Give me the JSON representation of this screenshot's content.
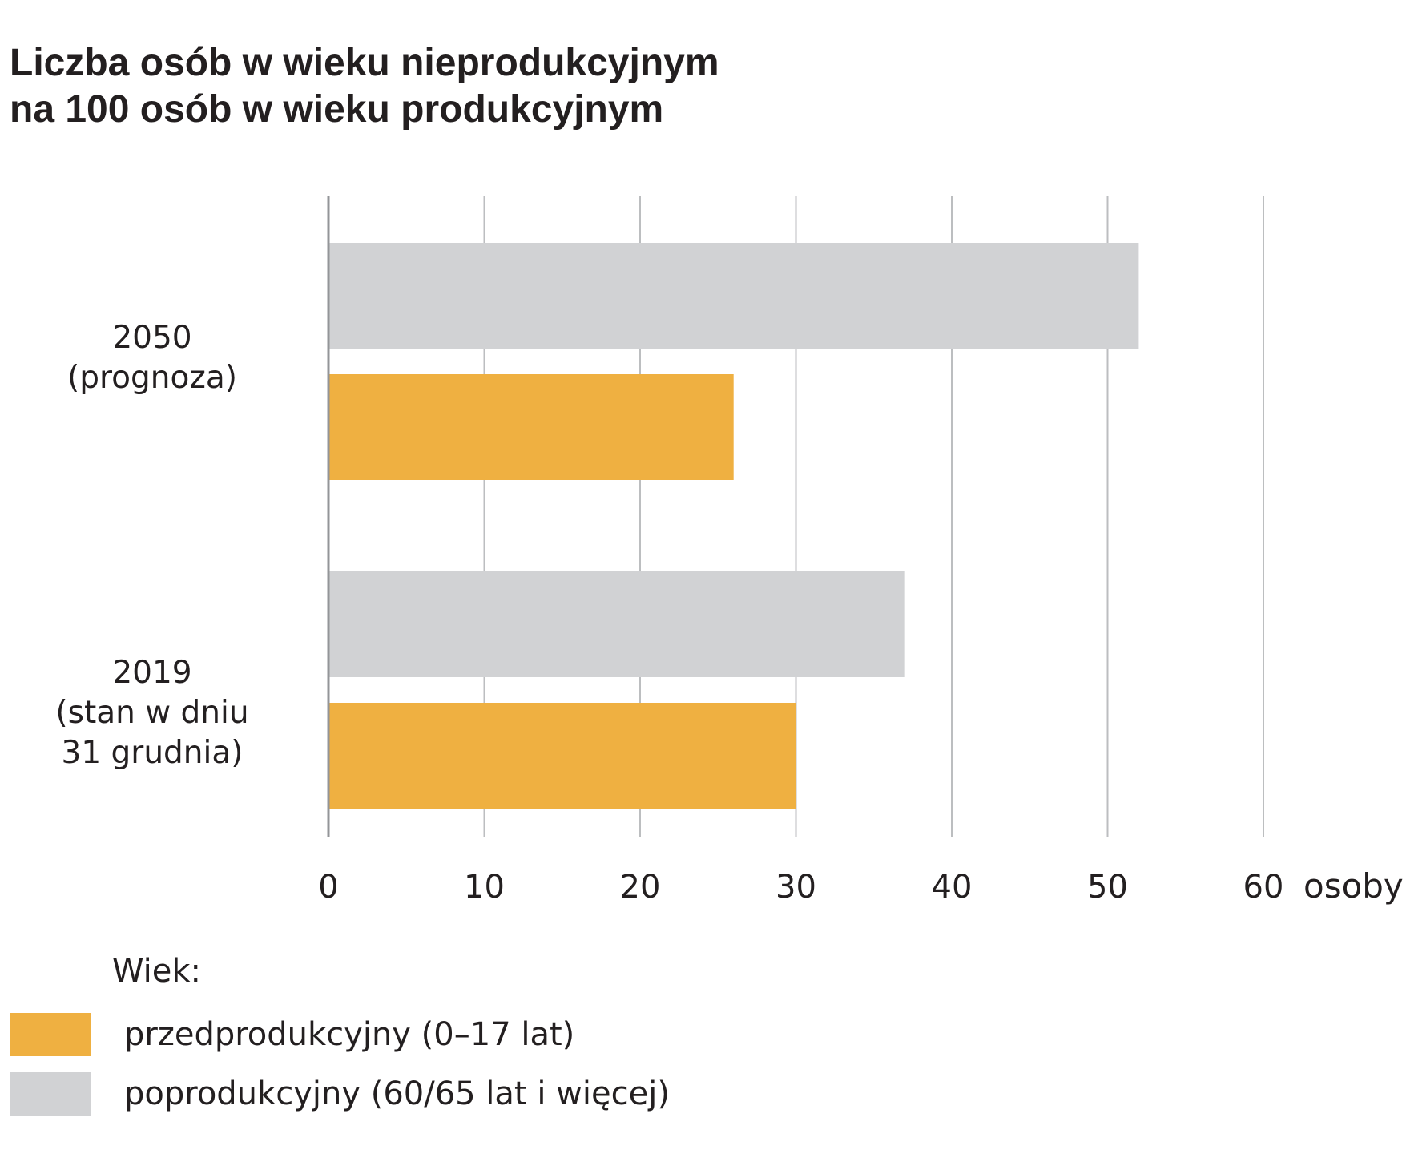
{
  "title": {
    "line1": "Liczba osób w wieku nieprodukcyjnym",
    "line2": "na 100 osób w wieku produkcyjnym"
  },
  "chart_data": {
    "type": "bar",
    "orientation": "horizontal",
    "categories": [
      {
        "line1": "2050",
        "line2": "(prognoza)",
        "line3": ""
      },
      {
        "line1": "2019",
        "line2": "(stan w dniu",
        "line3": "31 grudnia)"
      }
    ],
    "series": [
      {
        "name": "poprodukcyjny (60/65 lat i więcej)",
        "color": "#d1d2d4",
        "values": [
          52,
          37
        ]
      },
      {
        "name": "przedprodukcyjny (0–17 lat)",
        "color": "#efb041",
        "values": [
          26,
          30
        ]
      }
    ],
    "xlim": [
      0,
      60
    ],
    "xticks": [
      0,
      10,
      20,
      30,
      40,
      50,
      60
    ],
    "xlabel": "osoby",
    "grid": true,
    "legend_title": "Wiek:",
    "legend_position": "bottom-left",
    "legend_order": [
      1,
      0
    ]
  }
}
